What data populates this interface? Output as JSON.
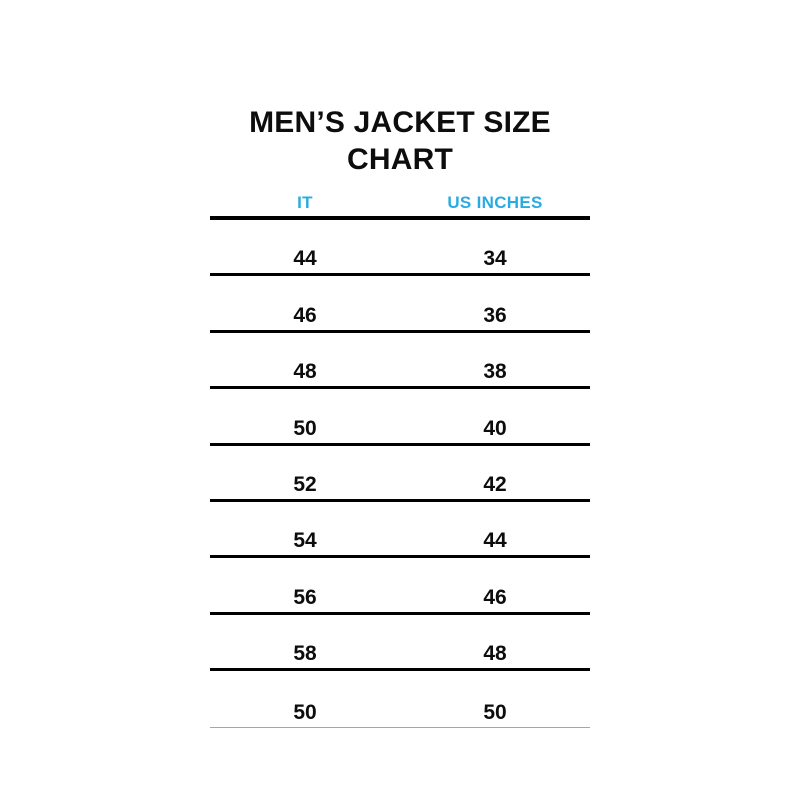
{
  "title": {
    "line1": "MEN’S JACKET SIZE",
    "line2": "CHART"
  },
  "chart_data": {
    "type": "table",
    "title": "MEN’S JACKET SIZE CHART",
    "columns": [
      "IT",
      "US INCHES"
    ],
    "rows": [
      [
        "44",
        "34"
      ],
      [
        "46",
        "36"
      ],
      [
        "48",
        "38"
      ],
      [
        "50",
        "40"
      ],
      [
        "52",
        "42"
      ],
      [
        "54",
        "44"
      ],
      [
        "56",
        "46"
      ],
      [
        "58",
        "48"
      ],
      [
        "50",
        "50"
      ]
    ],
    "layout": {
      "header_text_color": "#29ABE2",
      "title_color": "#0d0d0d",
      "value_color": "#0d0d0d",
      "rule_color": "#000000",
      "last_rule_color": "#a6a6a6",
      "background": "#ffffff",
      "grid": "horizontal-rules-only",
      "legend_position": "none"
    }
  }
}
